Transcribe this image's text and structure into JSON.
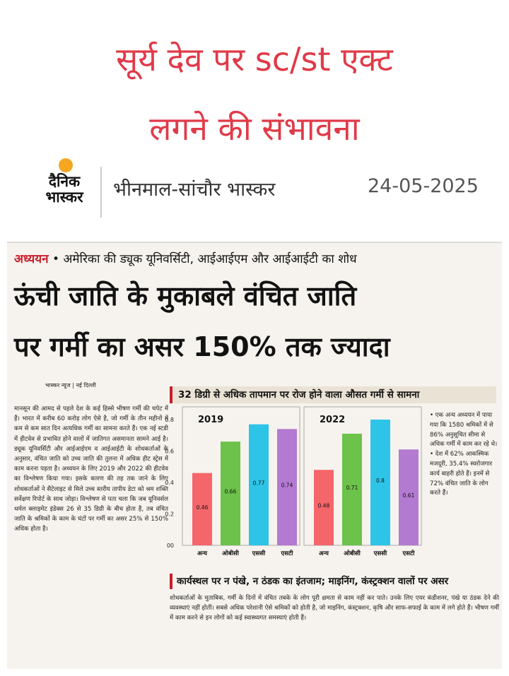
{
  "headline": {
    "line1": "सूर्य देव पर sc/st एक्ट",
    "line2": "लगने की संभावना"
  },
  "masthead": {
    "logo_line1": "दैनिक",
    "logo_line2": "भास्कर",
    "edition": "भीनमाल-सांचौर भास्कर",
    "date": "24-05-2025",
    "logo_sun_color": "#f5a623"
  },
  "article": {
    "kicker_label": "अध्ययन",
    "kicker_text": "• अमेरिका की ड्यूक यूनिवर्सिटी, आईआईएम और आईआईटी का शोध",
    "title_line1": "ऊंची जाति के मुकाबले वंचित जाति",
    "title_line2": "पर गर्मी का असर 150% तक ज्यादा",
    "byline": "भास्कर न्यूज | नई दिल्ली",
    "body": "मानसून की आमद से पहले देश के कई हिस्से भीषण गर्मी की चपेट में हैं। भारत में करीब 60 करोड़ लोग ऐसे है, जो गर्मी के तीन महीनों में कम से कम सात दिन अत्यधिक गर्मी का सामना करते हैं। एक नई स्टडी में हीटवेव से प्रभावित होने वालों में जातिगत असमानता सामने आई है। ड्यूक यूनिवर्सिटी और आईआईएम व आईआईटी के शोधकर्ताओं के अनुसार, वंचित जाति को उच्च जाति की तुलना में अधिक हीट स्ट्रेस में काम करना पड़ता है। अध्ययन के लिए 2019 और 2022 की हीटवेव का विश्लेषण किया गया। इसके कारण की तह तक जाने के लिए शोधकर्ताओं ने सैटेलाइट से मिले उच्च स्तरीय तापीय डेटा को श्रम शक्ति सर्वेक्षण रिपोर्ट के साथ जोड़ा। विश्लेषण से पता चला कि जब यूनिवर्सल थर्मल क्लाइमेट इंडेक्स 26 से 35 डिग्री के बीच होता है, तब वंचित जाति के श्रमिकों के काम के घंटों पर गर्मी का असर 25% से 150% अधिक होता है।",
    "side_note": "• एक अन्य अध्ययन में पाया गया कि 1580 श्रमिकों में से 86% अनुसूचित सीमा से अधिक गर्मी में काम कर रहे थे। • देश में 62% आकस्मिक मजदूरी, 35.4% स्वरोजगार कार्य बाहरी होते हैं। इनमें से 72% वंचित जाति के लोग करते हैं।",
    "box_title": "कार्यस्थल पर न पंखे, न ठंडक का इंतजाम; माइनिंग, कंस्ट्रक्शन वालों पर असर",
    "box_text": "शोधकर्ताओं के मुताबिक, गर्मी के दिनों में वंचित तबके के लोग पूरी क्षमता से काम नहीं कर पाते। उनके लिए एयर कंडीशनर, पंखे या ठंडक देने की व्यवस्थाएं नहीं होतीं। सबसे अधिक परेशानी ऐसे श्रमिकों को होती है, जो माइनिंग, कंस्ट्रक्शन, कृषि और साफ-सफाई के काम में लगे होते हैं। भीषण गर्मी में काम करने से इन लोगों को कई स्वास्थ्यगत समस्याएं होती हैं।"
  },
  "chart_data": {
    "type": "bar",
    "title": "32 डिग्री से अधिक तापमान पर रोज होने वाला औसत गर्मी से सामना",
    "categories": [
      "अन्य",
      "ओबीसी",
      "एससी",
      "एसटी"
    ],
    "panels": [
      {
        "year": "2019",
        "values": [
          0.46,
          0.66,
          0.77,
          0.74
        ]
      },
      {
        "year": "2022",
        "values": [
          0.48,
          0.71,
          0.8,
          0.61
        ]
      }
    ],
    "data_labels": [
      [
        "0.46",
        "0.66",
        "0.77",
        "0.74"
      ],
      [
        "0.48",
        "0.71",
        "0.8",
        "0.61"
      ]
    ],
    "ylim": [
      0,
      0.8
    ],
    "yticks": [
      "0.8",
      "0.6",
      "0.4",
      "0.2",
      "00"
    ],
    "colors": [
      "#f4666a",
      "#6cc24a",
      "#2ec4e8",
      "#b37ad1"
    ],
    "grid": false,
    "legend": "none"
  }
}
